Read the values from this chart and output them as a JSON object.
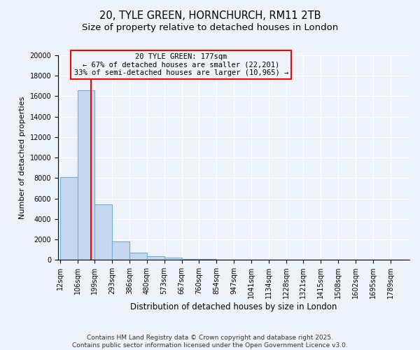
{
  "title_line1": "20, TYLE GREEN, HORNCHURCH, RM11 2TB",
  "title_line2": "Size of property relative to detached houses in London",
  "xlabel": "Distribution of detached houses by size in London",
  "ylabel": "Number of detached properties",
  "bar_edges": [
    12,
    106,
    199,
    293,
    386,
    480,
    573,
    667,
    760,
    854,
    947,
    1041,
    1134,
    1228,
    1321,
    1415,
    1508,
    1602,
    1695,
    1789,
    1882
  ],
  "bar_heights": [
    8100,
    16600,
    5400,
    1800,
    700,
    350,
    200,
    100,
    50,
    25,
    15,
    10,
    8,
    6,
    5,
    4,
    3,
    2,
    2,
    1
  ],
  "bar_color": "#c5d8f0",
  "bar_edge_color": "#6baed6",
  "vline_x": 177,
  "vline_color": "red",
  "annotation_text": "20 TYLE GREEN: 177sqm\n← 67% of detached houses are smaller (22,201)\n33% of semi-detached houses are larger (10,965) →",
  "annotation_box_color": "red",
  "ylim": [
    0,
    20000
  ],
  "yticks": [
    0,
    2000,
    4000,
    6000,
    8000,
    10000,
    12000,
    14000,
    16000,
    18000,
    20000
  ],
  "footer_line1": "Contains HM Land Registry data © Crown copyright and database right 2025.",
  "footer_line2": "Contains public sector information licensed under the Open Government Licence v3.0.",
  "background_color": "#eef2fb",
  "grid_color": "white",
  "title_fontsize": 10.5,
  "subtitle_fontsize": 9.5,
  "ylabel_fontsize": 8,
  "xlabel_fontsize": 8.5,
  "tick_fontsize": 7,
  "footer_fontsize": 6.5,
  "ann_fontsize": 7.5
}
